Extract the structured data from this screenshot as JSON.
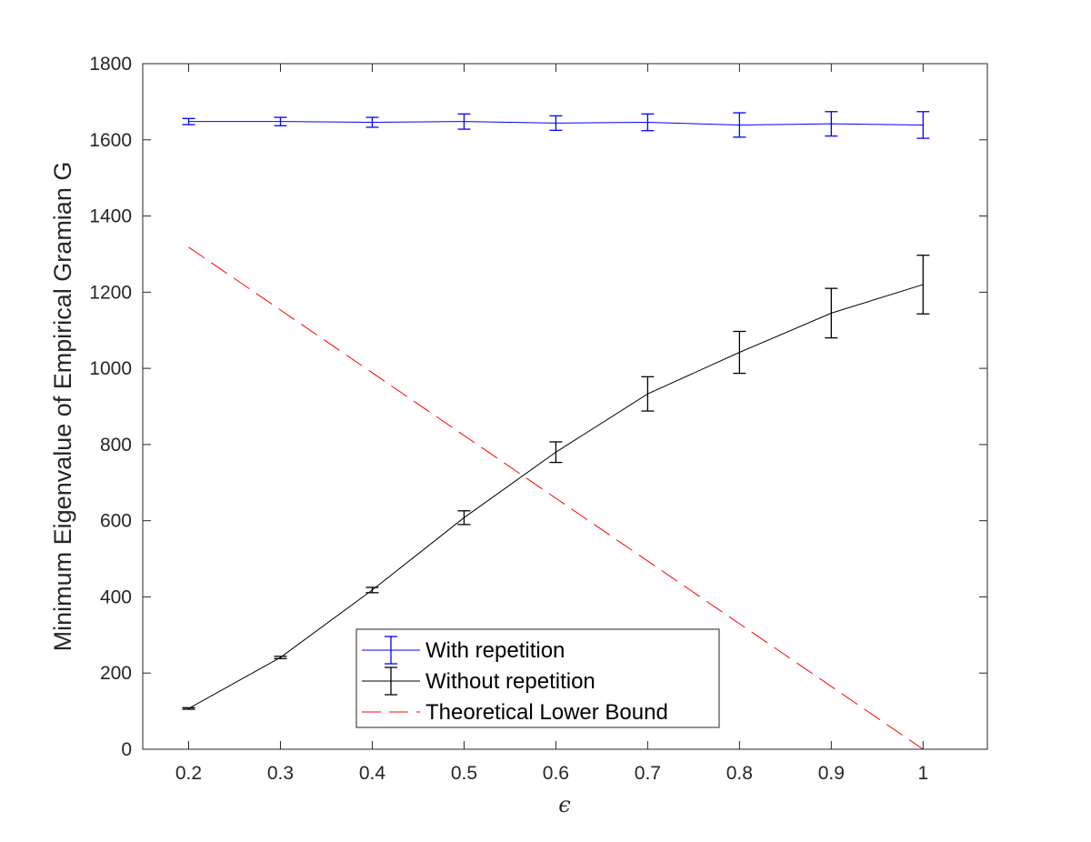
{
  "chart_data": {
    "type": "line",
    "xlabel": "ϵ",
    "ylabel": "Minimum Eigenvalue of Empirical Gramian G",
    "xlim": [
      0.15,
      1.07
    ],
    "ylim": [
      0,
      1800
    ],
    "x_ticks": [
      "0.2",
      "0.3",
      "0.4",
      "0.5",
      "0.6",
      "0.7",
      "0.8",
      "0.9",
      "1"
    ],
    "y_ticks": [
      "0",
      "200",
      "400",
      "600",
      "800",
      "1000",
      "1200",
      "1400",
      "1600",
      "1800"
    ],
    "grid": false,
    "legend_position": "bottom-center",
    "x": [
      0.2,
      0.3,
      0.4,
      0.5,
      0.6,
      0.7,
      0.8,
      0.9,
      1.0
    ],
    "series": [
      {
        "name": "With repetition",
        "color": "#0000ff",
        "style": "solid",
        "error_bars": true,
        "values": [
          1648,
          1648,
          1646,
          1648,
          1644,
          1646,
          1639,
          1642,
          1639
        ],
        "errors": [
          8,
          11,
          13,
          20,
          19,
          22,
          32,
          32,
          35
        ]
      },
      {
        "name": "Without repetition",
        "color": "#000000",
        "style": "solid",
        "error_bars": true,
        "values": [
          107,
          241,
          418,
          608,
          780,
          933,
          1042,
          1145,
          1220
        ],
        "errors": [
          2,
          3,
          7,
          18,
          27,
          45,
          55,
          65,
          77
        ]
      },
      {
        "name": "Theoretical Lower Bound",
        "color": "#ff0000",
        "style": "dashed",
        "error_bars": false,
        "x": [
          0.2,
          1.0
        ],
        "values": [
          1318,
          0
        ]
      }
    ]
  }
}
